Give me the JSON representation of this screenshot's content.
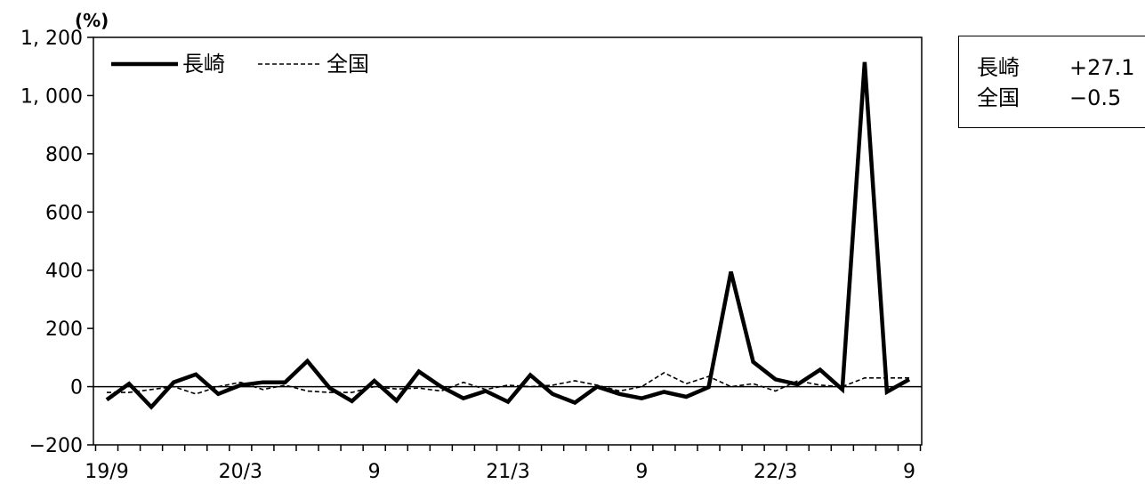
{
  "chart_data": {
    "type": "line",
    "unit": "(%)",
    "ylim": [
      -200,
      1200
    ],
    "yticks": [
      -200,
      0,
      200,
      400,
      600,
      800,
      1000,
      1200
    ],
    "ytick_labels": [
      "−200",
      "0",
      "200",
      "400",
      "600",
      "800",
      "1, 000",
      "1, 200"
    ],
    "x_labels": [
      {
        "index": 0,
        "label": "19/9"
      },
      {
        "index": 6,
        "label": "20/3"
      },
      {
        "index": 12,
        "label": "9"
      },
      {
        "index": 18,
        "label": "21/3"
      },
      {
        "index": 24,
        "label": "9"
      },
      {
        "index": 30,
        "label": "22/3"
      },
      {
        "index": 36,
        "label": "9"
      }
    ],
    "legend_position": "top-left",
    "series": [
      {
        "name": "長崎",
        "style": "solid-thick",
        "values": [
          -45,
          10,
          -70,
          15,
          42,
          -25,
          5,
          15,
          15,
          88,
          -5,
          -50,
          20,
          -48,
          52,
          0,
          -40,
          -15,
          -52,
          40,
          -25,
          -55,
          0,
          -25,
          -40,
          -18,
          -35,
          -2,
          395,
          85,
          25,
          8,
          58,
          -10,
          1115,
          -18,
          25
        ]
      },
      {
        "name": "全国",
        "style": "dashed",
        "values": [
          -20,
          -20,
          -10,
          0,
          -25,
          0,
          15,
          -10,
          5,
          -15,
          -20,
          -20,
          0,
          -8,
          -5,
          -15,
          15,
          -10,
          5,
          0,
          5,
          20,
          5,
          -15,
          0,
          48,
          10,
          35,
          0,
          10,
          -15,
          20,
          5,
          0,
          30,
          30,
          30
        ]
      }
    ]
  },
  "stats_box": {
    "rows": [
      {
        "name": "長崎",
        "value": "+27.1"
      },
      {
        "name": "全国",
        "value": "−0.5"
      }
    ]
  }
}
